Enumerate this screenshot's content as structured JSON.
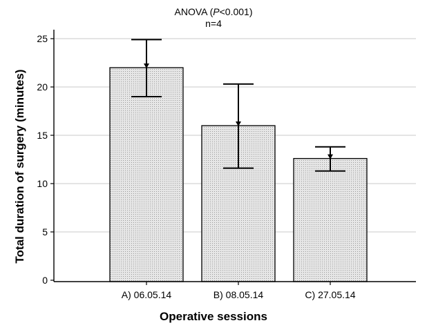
{
  "chart_data": {
    "type": "bar",
    "categories": [
      "A) 06.05.14",
      "B) 08.05.14",
      "C) 27.05.14"
    ],
    "values": [
      22.0,
      16.0,
      12.6
    ],
    "error_lower": [
      19.0,
      11.6,
      11.3
    ],
    "error_upper": [
      24.9,
      20.3,
      13.8
    ],
    "annotation_line1_prefix": "ANOVA (",
    "annotation_line1_italic": "P",
    "annotation_line1_suffix": "<0.001)",
    "annotation_line2": "n=4",
    "xlabel": "Operative sessions",
    "ylabel": "Total duration of surgery (minutes)",
    "ylim": [
      0,
      25
    ],
    "yticks": [
      0,
      5,
      10,
      15,
      20,
      25
    ],
    "grid": true,
    "bar_fill": "#e6e6e6",
    "bar_pattern_dot": "#9a9a9a",
    "grid_color": "#c8c8c8"
  }
}
